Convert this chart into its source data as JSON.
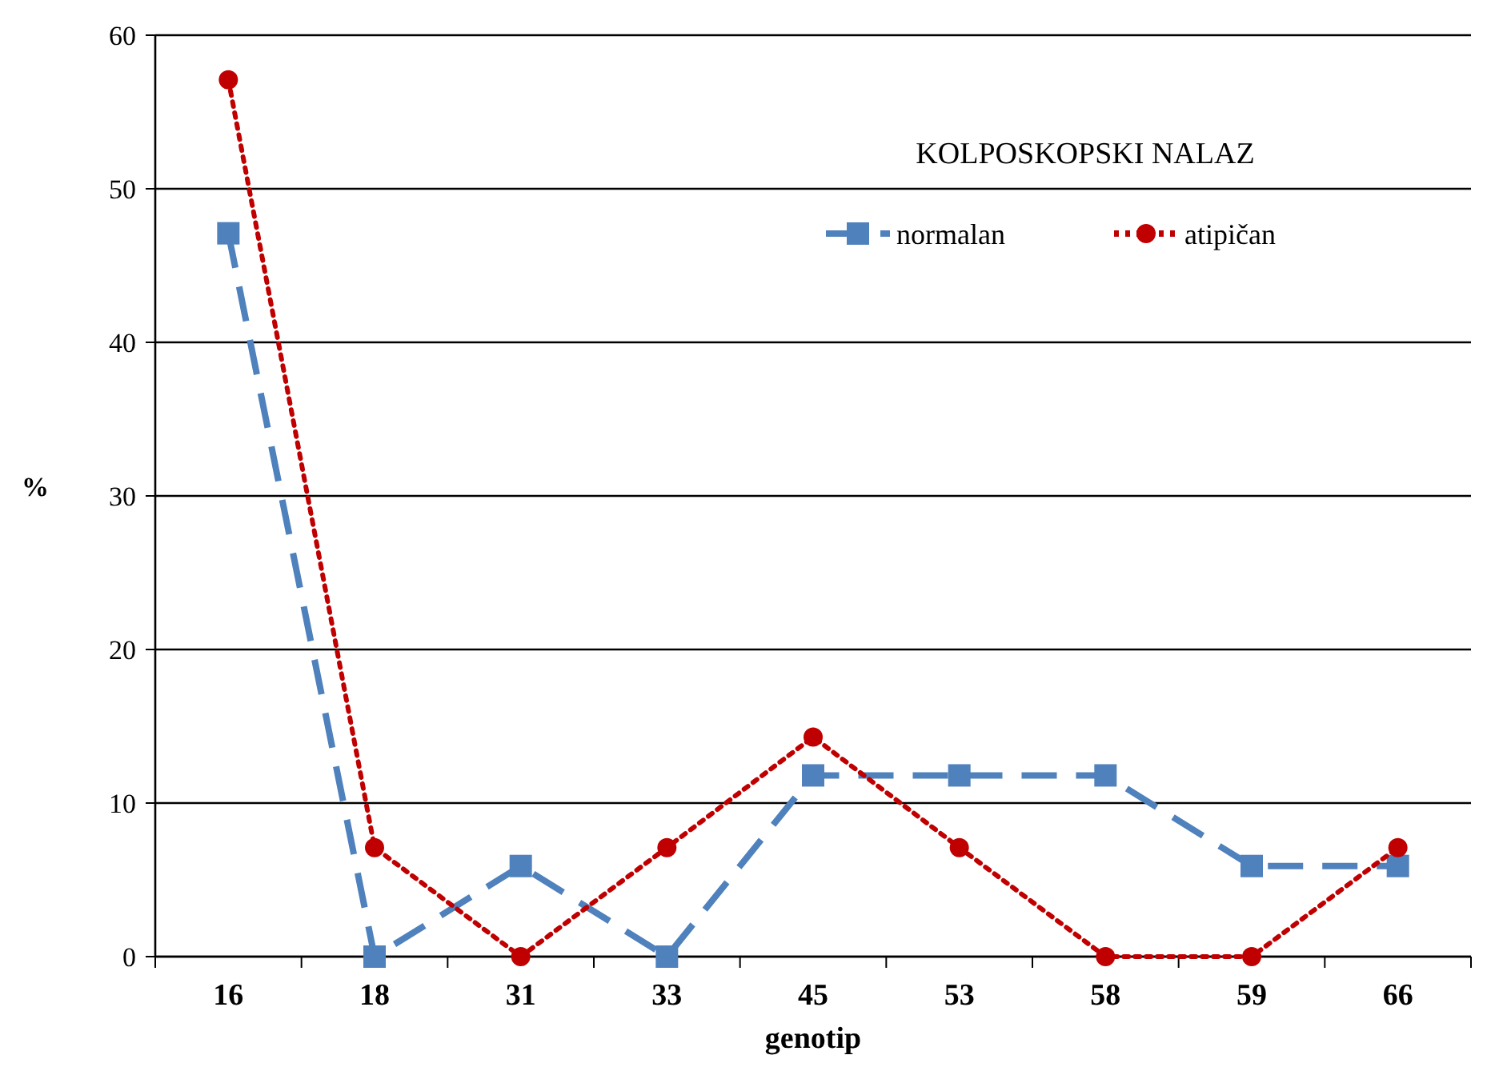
{
  "chart_data": {
    "type": "line",
    "xlabel": "genotip",
    "ylabel": "%",
    "legend_title": "KOLPOSKOPSKI NALAZ",
    "categories": [
      "16",
      "18",
      "31",
      "33",
      "45",
      "53",
      "58",
      "59",
      "66"
    ],
    "series": [
      {
        "name": "normalan",
        "color": "#4f81bd",
        "marker": "square",
        "line_style": "dashed",
        "values": [
          47.1,
          0,
          5.9,
          0,
          11.8,
          11.8,
          11.8,
          5.9,
          5.9
        ]
      },
      {
        "name": "atipičan",
        "color": "#c00000",
        "marker": "circle",
        "line_style": "dotted",
        "values": [
          57.1,
          7.1,
          0,
          7.1,
          14.3,
          7.1,
          0,
          0,
          7.1
        ]
      }
    ],
    "ylim": [
      0,
      60
    ],
    "yticks": [
      0,
      10,
      20,
      30,
      40,
      50,
      60
    ],
    "grid": "y",
    "legend": "top right"
  }
}
